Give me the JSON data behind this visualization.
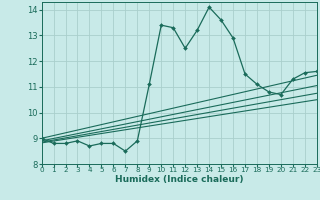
{
  "xlabel": "Humidex (Indice chaleur)",
  "bg_color": "#c8eae8",
  "grid_color": "#aacfcc",
  "line_color": "#1a6b5a",
  "main_x": [
    0,
    1,
    2,
    3,
    4,
    5,
    6,
    7,
    8,
    9,
    10,
    11,
    12,
    13,
    14,
    15,
    16,
    17,
    18,
    19,
    20,
    21,
    22,
    23
  ],
  "main_y": [
    9.0,
    8.8,
    8.8,
    8.9,
    8.7,
    8.8,
    8.8,
    8.5,
    8.9,
    11.1,
    13.4,
    13.3,
    12.5,
    13.2,
    14.1,
    13.6,
    12.9,
    11.5,
    11.1,
    10.8,
    10.7,
    11.3,
    11.55,
    11.6
  ],
  "reg_lines": [
    {
      "x0": 0,
      "y0": 9.0,
      "x1": 23,
      "y1": 11.45
    },
    {
      "x0": 0,
      "y0": 8.9,
      "x1": 23,
      "y1": 11.05
    },
    {
      "x0": 0,
      "y0": 8.85,
      "x1": 23,
      "y1": 10.75
    },
    {
      "x0": 0,
      "y0": 8.82,
      "x1": 23,
      "y1": 10.5
    }
  ],
  "xlim": [
    0,
    23
  ],
  "ylim": [
    8.2,
    14.3
  ],
  "yticks": [
    8,
    9,
    10,
    11,
    12,
    13,
    14
  ],
  "xticks": [
    0,
    1,
    2,
    3,
    4,
    5,
    6,
    7,
    8,
    9,
    10,
    11,
    12,
    13,
    14,
    15,
    16,
    17,
    18,
    19,
    20,
    21,
    22,
    23
  ]
}
